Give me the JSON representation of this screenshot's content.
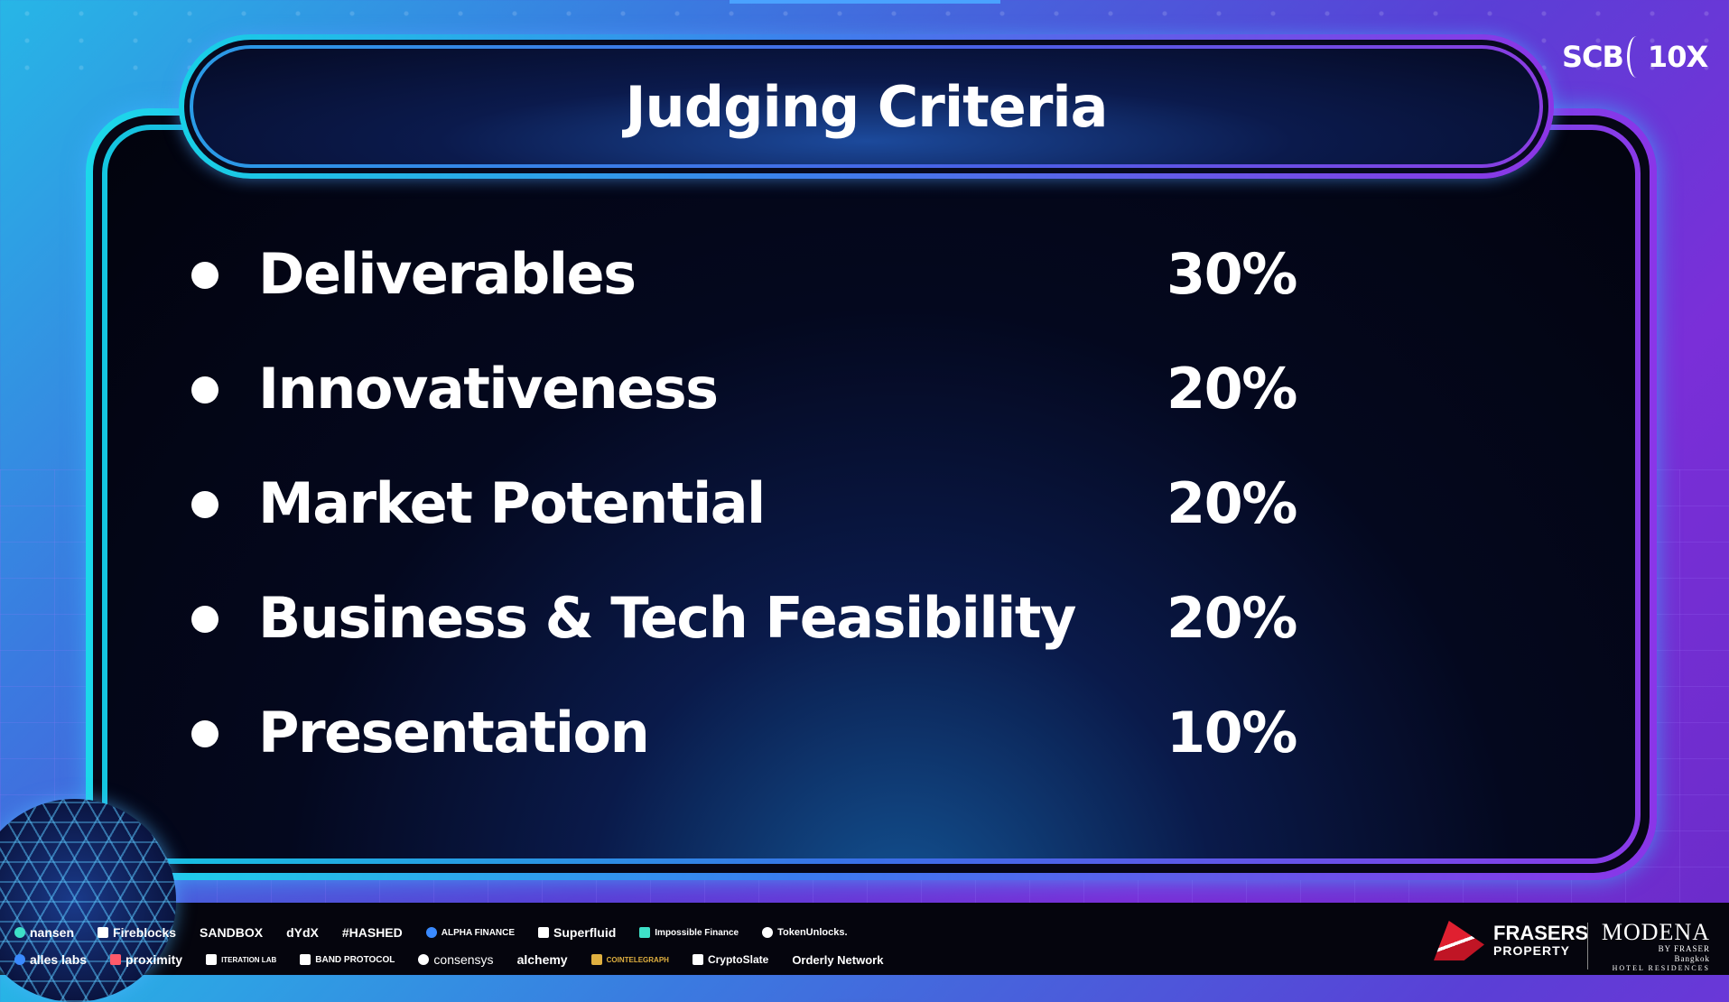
{
  "slide": {
    "title": "Judging Criteria",
    "brand_logo": {
      "left": "SCB",
      "right": "10X"
    },
    "criteria": [
      {
        "label": "Deliverables",
        "percent": "30%"
      },
      {
        "label": "Innovativeness",
        "percent": "20%"
      },
      {
        "label": "Market Potential",
        "percent": "20%"
      },
      {
        "label": "Business & Tech Feasibility",
        "percent": "20%"
      },
      {
        "label": "Presentation",
        "percent": "10%"
      }
    ]
  },
  "footer": {
    "sponsors_row1": [
      "nansen",
      "Fireblocks",
      "SANDBOX",
      "dYdX",
      "#HASHED",
      "ALPHA FINANCE",
      "Superfluid",
      "Impossible Finance",
      "TokenUnlocks."
    ],
    "sponsors_row2": [
      "alles labs",
      "proximity",
      "ITERATION LAB",
      "BAND PROTOCOL",
      "consensys",
      "alchemy",
      "COINTELEGRAPH",
      "CryptoSlate",
      "Orderly Network"
    ],
    "frasers": {
      "line1": "FRASERS",
      "line2": "PROPERTY"
    },
    "modena": {
      "name": "MODENA",
      "by": "BY FRASER",
      "city": "Bangkok",
      "sub": "HOTEL RESIDENCES"
    }
  },
  "colors": {
    "accent_cyan": "#18d0e6",
    "accent_purple": "#8c35e6",
    "panel_dark": "#04081e",
    "text": "#ffffff"
  }
}
